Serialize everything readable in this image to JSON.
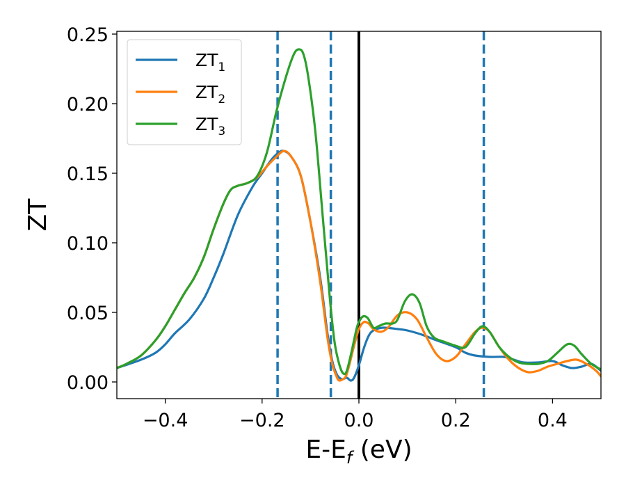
{
  "chart_data": {
    "type": "line",
    "xlabel_main": "E-E",
    "xlabel_sub": "f",
    "xlabel_unit": " (eV)",
    "ylabel": "ZT",
    "xlim": [
      -0.5,
      0.5
    ],
    "ylim": [
      -0.012,
      0.252
    ],
    "x_ticks": [
      -0.4,
      -0.2,
      0.0,
      0.2,
      0.4
    ],
    "x_tick_labels": [
      "−0.4",
      "−0.2",
      "0.0",
      "0.2",
      "0.4"
    ],
    "y_ticks": [
      0.0,
      0.05,
      0.1,
      0.15,
      0.2,
      0.25
    ],
    "y_tick_labels": [
      "0.00",
      "0.05",
      "0.10",
      "0.15",
      "0.20",
      "0.25"
    ],
    "grid": false,
    "legend_position": "top-left",
    "vertical_lines": [
      {
        "x": -0.168,
        "style": "dashed",
        "color": "#1f77b4"
      },
      {
        "x": -0.058,
        "style": "dashed",
        "color": "#1f77b4"
      },
      {
        "x": 0.258,
        "style": "dashed",
        "color": "#1f77b4"
      },
      {
        "x": 0.0,
        "style": "solid",
        "color": "#000000"
      }
    ],
    "series": [
      {
        "name": "ZT",
        "name_sub": "1",
        "color": "#1f77b4",
        "points": [
          [
            -0.5,
            0.01
          ],
          [
            -0.45,
            0.016
          ],
          [
            -0.42,
            0.021
          ],
          [
            -0.4,
            0.027
          ],
          [
            -0.38,
            0.035
          ],
          [
            -0.35,
            0.045
          ],
          [
            -0.32,
            0.06
          ],
          [
            -0.3,
            0.075
          ],
          [
            -0.28,
            0.092
          ],
          [
            -0.25,
            0.12
          ],
          [
            -0.22,
            0.14
          ],
          [
            -0.2,
            0.15
          ],
          [
            -0.18,
            0.16
          ],
          [
            -0.165,
            0.165
          ],
          [
            -0.155,
            0.166
          ],
          [
            -0.14,
            0.162
          ],
          [
            -0.12,
            0.148
          ],
          [
            -0.1,
            0.115
          ],
          [
            -0.08,
            0.075
          ],
          [
            -0.065,
            0.035
          ],
          [
            -0.055,
            0.015
          ],
          [
            -0.045,
            0.005
          ],
          [
            -0.035,
            0.002
          ],
          [
            -0.025,
            0.003
          ],
          [
            -0.017,
            0.001
          ],
          [
            -0.01,
            0.003
          ],
          [
            0.0,
            0.012
          ],
          [
            0.01,
            0.024
          ],
          [
            0.02,
            0.033
          ],
          [
            0.03,
            0.037
          ],
          [
            0.05,
            0.039
          ],
          [
            0.08,
            0.038
          ],
          [
            0.1,
            0.037
          ],
          [
            0.13,
            0.034
          ],
          [
            0.16,
            0.03
          ],
          [
            0.2,
            0.025
          ],
          [
            0.22,
            0.021
          ],
          [
            0.24,
            0.019
          ],
          [
            0.27,
            0.018
          ],
          [
            0.3,
            0.018
          ],
          [
            0.32,
            0.016
          ],
          [
            0.34,
            0.014
          ],
          [
            0.37,
            0.014
          ],
          [
            0.4,
            0.015
          ],
          [
            0.42,
            0.012
          ],
          [
            0.44,
            0.01
          ],
          [
            0.46,
            0.011
          ],
          [
            0.48,
            0.013
          ],
          [
            0.5,
            0.008
          ]
        ]
      },
      {
        "name": "ZT",
        "name_sub": "2",
        "color": "#ff7f0e",
        "points": [
          [
            -0.5,
            0.01
          ],
          [
            -0.48,
            0.013
          ],
          [
            -0.45,
            0.019
          ],
          [
            -0.42,
            0.03
          ],
          [
            -0.4,
            0.04
          ],
          [
            -0.38,
            0.052
          ],
          [
            -0.36,
            0.064
          ],
          [
            -0.34,
            0.075
          ],
          [
            -0.32,
            0.09
          ],
          [
            -0.3,
            0.11
          ],
          [
            -0.28,
            0.128
          ],
          [
            -0.265,
            0.138
          ],
          [
            -0.25,
            0.141
          ],
          [
            -0.23,
            0.143
          ],
          [
            -0.21,
            0.147
          ],
          [
            -0.19,
            0.155
          ],
          [
            -0.17,
            0.162
          ],
          [
            -0.155,
            0.166
          ],
          [
            -0.14,
            0.162
          ],
          [
            -0.12,
            0.148
          ],
          [
            -0.1,
            0.115
          ],
          [
            -0.08,
            0.072
          ],
          [
            -0.065,
            0.032
          ],
          [
            -0.055,
            0.013
          ],
          [
            -0.045,
            0.003
          ],
          [
            -0.04,
            0.001
          ],
          [
            -0.033,
            0.002
          ],
          [
            -0.027,
            0.004
          ],
          [
            -0.02,
            0.012
          ],
          [
            -0.01,
            0.026
          ],
          [
            0.0,
            0.038
          ],
          [
            0.01,
            0.043
          ],
          [
            0.02,
            0.042
          ],
          [
            0.03,
            0.038
          ],
          [
            0.045,
            0.036
          ],
          [
            0.06,
            0.039
          ],
          [
            0.08,
            0.048
          ],
          [
            0.1,
            0.05
          ],
          [
            0.12,
            0.045
          ],
          [
            0.14,
            0.032
          ],
          [
            0.16,
            0.02
          ],
          [
            0.18,
            0.015
          ],
          [
            0.2,
            0.018
          ],
          [
            0.22,
            0.027
          ],
          [
            0.24,
            0.036
          ],
          [
            0.255,
            0.039
          ],
          [
            0.27,
            0.036
          ],
          [
            0.29,
            0.025
          ],
          [
            0.31,
            0.016
          ],
          [
            0.33,
            0.01
          ],
          [
            0.35,
            0.007
          ],
          [
            0.37,
            0.008
          ],
          [
            0.39,
            0.011
          ],
          [
            0.41,
            0.013
          ],
          [
            0.43,
            0.015
          ],
          [
            0.45,
            0.016
          ],
          [
            0.47,
            0.013
          ],
          [
            0.49,
            0.008
          ],
          [
            0.5,
            0.004
          ]
        ]
      },
      {
        "name": "ZT",
        "name_sub": "3",
        "color": "#2ca02c",
        "points": [
          [
            -0.5,
            0.01
          ],
          [
            -0.48,
            0.013
          ],
          [
            -0.45,
            0.019
          ],
          [
            -0.42,
            0.03
          ],
          [
            -0.4,
            0.04
          ],
          [
            -0.38,
            0.052
          ],
          [
            -0.36,
            0.064
          ],
          [
            -0.34,
            0.075
          ],
          [
            -0.32,
            0.09
          ],
          [
            -0.3,
            0.11
          ],
          [
            -0.28,
            0.128
          ],
          [
            -0.265,
            0.138
          ],
          [
            -0.25,
            0.141
          ],
          [
            -0.23,
            0.143
          ],
          [
            -0.21,
            0.148
          ],
          [
            -0.19,
            0.165
          ],
          [
            -0.17,
            0.195
          ],
          [
            -0.15,
            0.22
          ],
          [
            -0.135,
            0.235
          ],
          [
            -0.125,
            0.239
          ],
          [
            -0.115,
            0.236
          ],
          [
            -0.105,
            0.22
          ],
          [
            -0.09,
            0.18
          ],
          [
            -0.075,
            0.12
          ],
          [
            -0.06,
            0.06
          ],
          [
            -0.05,
            0.028
          ],
          [
            -0.04,
            0.012
          ],
          [
            -0.032,
            0.006
          ],
          [
            -0.025,
            0.008
          ],
          [
            -0.015,
            0.022
          ],
          [
            -0.005,
            0.038
          ],
          [
            0.0,
            0.043
          ],
          [
            0.008,
            0.047
          ],
          [
            0.018,
            0.046
          ],
          [
            0.03,
            0.039
          ],
          [
            0.04,
            0.04
          ],
          [
            0.055,
            0.042
          ],
          [
            0.07,
            0.042
          ],
          [
            0.08,
            0.045
          ],
          [
            0.095,
            0.058
          ],
          [
            0.11,
            0.063
          ],
          [
            0.125,
            0.057
          ],
          [
            0.14,
            0.04
          ],
          [
            0.155,
            0.032
          ],
          [
            0.175,
            0.029
          ],
          [
            0.2,
            0.026
          ],
          [
            0.22,
            0.025
          ],
          [
            0.24,
            0.035
          ],
          [
            0.255,
            0.04
          ],
          [
            0.27,
            0.036
          ],
          [
            0.29,
            0.025
          ],
          [
            0.31,
            0.018
          ],
          [
            0.33,
            0.014
          ],
          [
            0.35,
            0.013
          ],
          [
            0.37,
            0.013
          ],
          [
            0.39,
            0.015
          ],
          [
            0.41,
            0.021
          ],
          [
            0.43,
            0.027
          ],
          [
            0.445,
            0.026
          ],
          [
            0.46,
            0.02
          ],
          [
            0.48,
            0.013
          ],
          [
            0.5,
            0.009
          ]
        ]
      }
    ]
  }
}
